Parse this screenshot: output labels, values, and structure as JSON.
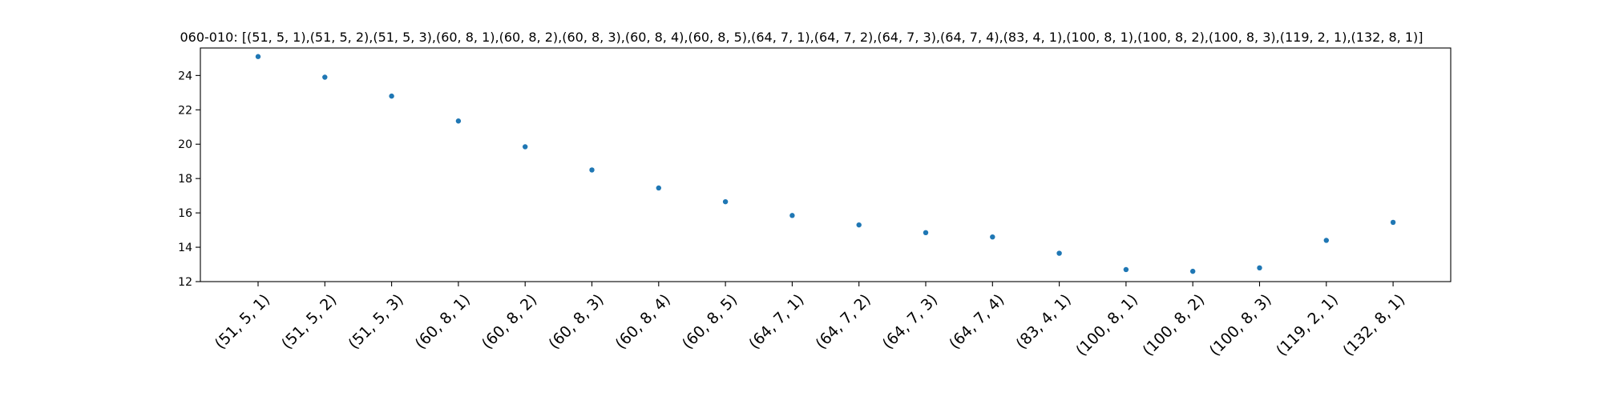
{
  "chart_data": {
    "type": "scatter",
    "title": "060-010: [(51, 5, 1),(51, 5, 2),(51, 5, 3),(60, 8, 1),(60, 8, 2),(60, 8, 3),(60, 8, 4),(60, 8, 5),(64, 7, 1),(64, 7, 2),(64, 7, 3),(64, 7, 4),(83, 4, 1),(100, 8, 1),(100, 8, 2),(100, 8, 3),(119, 2, 1),(132, 8, 1)]",
    "xlabel": "",
    "ylabel": "",
    "categories": [
      "(51, 5, 1)",
      "(51, 5, 2)",
      "(51, 5, 3)",
      "(60, 8, 1)",
      "(60, 8, 2)",
      "(60, 8, 3)",
      "(60, 8, 4)",
      "(60, 8, 5)",
      "(64, 7, 1)",
      "(64, 7, 2)",
      "(64, 7, 3)",
      "(64, 7, 4)",
      "(83, 4, 1)",
      "(100, 8, 1)",
      "(100, 8, 2)",
      "(100, 8, 3)",
      "(119, 2, 1)",
      "(132, 8, 1)"
    ],
    "values": [
      25.1,
      23.9,
      22.8,
      21.35,
      19.85,
      18.5,
      17.45,
      16.65,
      15.85,
      15.3,
      14.85,
      14.6,
      13.65,
      12.7,
      12.6,
      12.8,
      14.4,
      15.45
    ],
    "ylim": [
      12,
      25.6
    ],
    "yticks": [
      12,
      14,
      16,
      18,
      20,
      22,
      24
    ],
    "grid": false,
    "marker_color": "#1f77b4"
  }
}
